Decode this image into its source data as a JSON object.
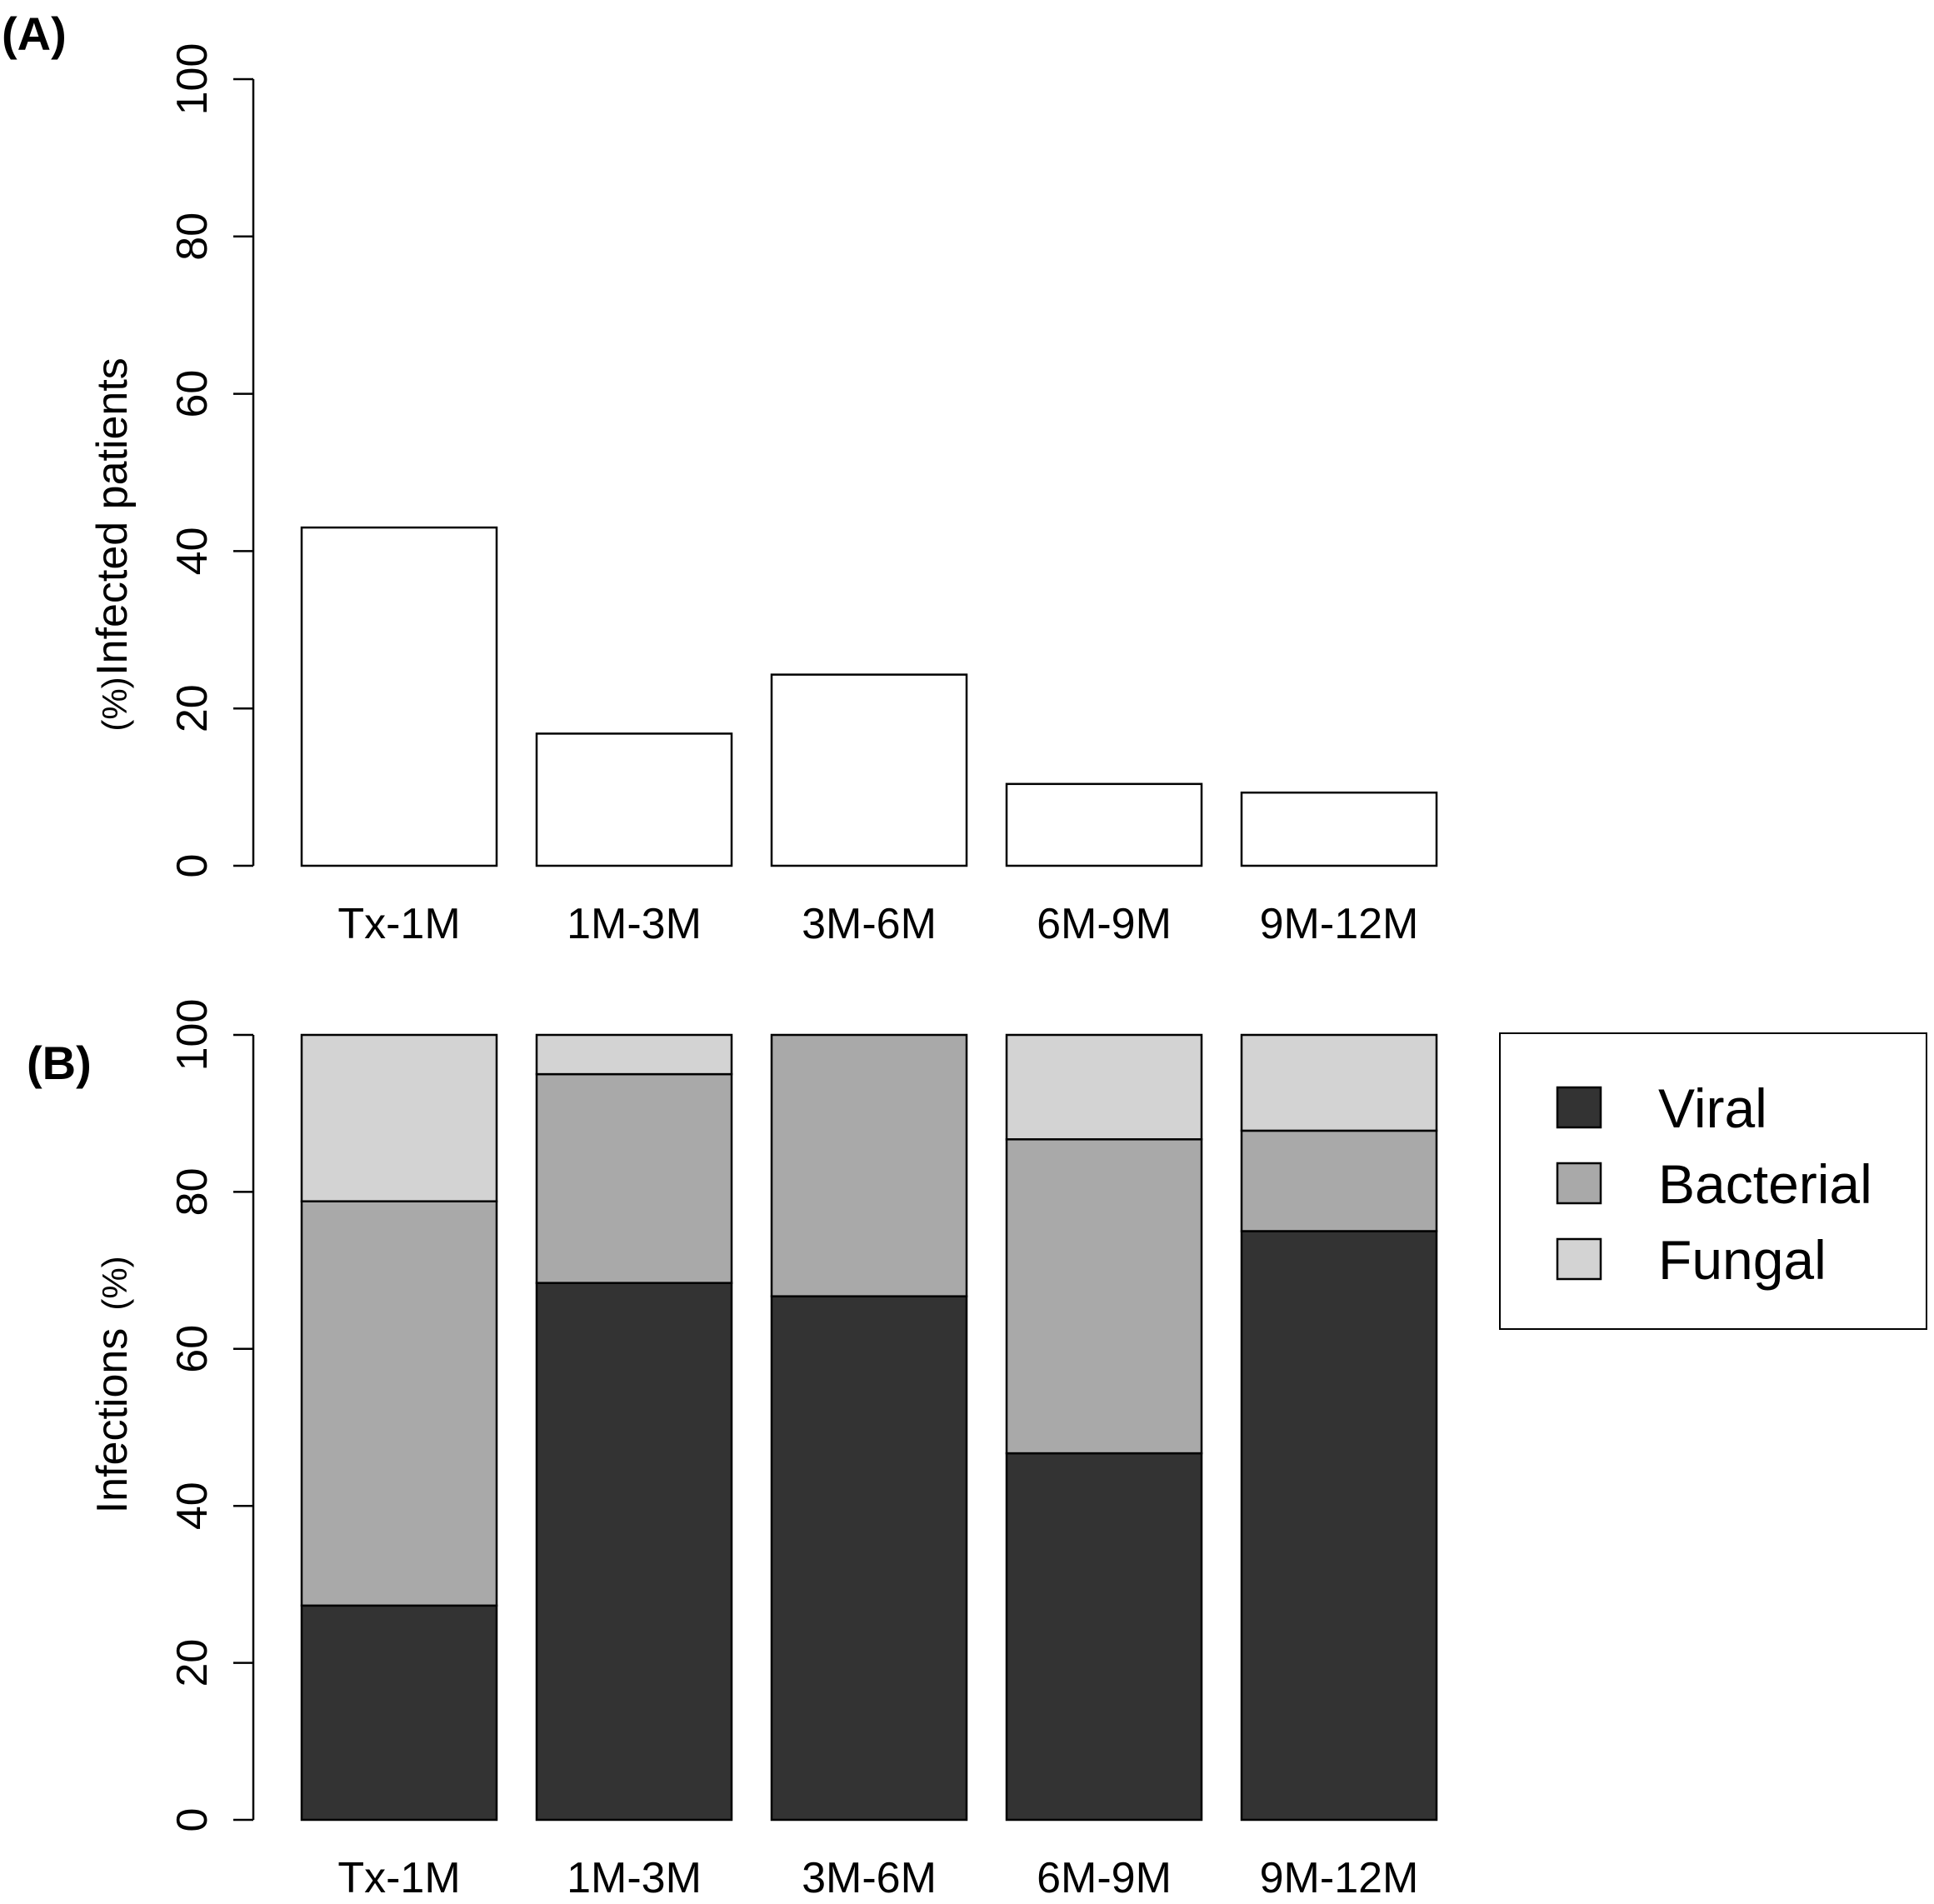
{
  "chart_data": [
    {
      "panel": "(A)",
      "type": "bar",
      "categories": [
        "Tx-1M",
        "1M-3M",
        "3M-6M",
        "6M-9M",
        "9M-12M"
      ],
      "values": [
        43,
        16.8,
        24.3,
        10.4,
        9.3
      ],
      "ylabel": "Infected patients",
      "yunit": "(%)",
      "ylim": [
        0,
        100
      ],
      "yticks": [
        0,
        20,
        40,
        60,
        80,
        100
      ],
      "bar_color": "#ffffff"
    },
    {
      "panel": "(B)",
      "type": "bar",
      "stacked": true,
      "categories": [
        "Tx-1M",
        "1M-3M",
        "3M-6M",
        "6M-9M",
        "9M-12M"
      ],
      "series": [
        {
          "name": "Viral",
          "color": "#333333",
          "values": [
            27.3,
            68.4,
            66.7,
            46.7,
            75.0
          ]
        },
        {
          "name": "Bacterial",
          "color": "#a9a9a9",
          "values": [
            51.5,
            26.6,
            33.3,
            40.0,
            12.8
          ]
        },
        {
          "name": "Fungal",
          "color": "#d3d3d3",
          "values": [
            21.2,
            5.0,
            0,
            13.3,
            12.2
          ]
        }
      ],
      "ylabel": "Infections",
      "yunit": "(%)",
      "ylim": [
        0,
        100
      ],
      "yticks": [
        0,
        20,
        40,
        60,
        80,
        100
      ],
      "legend": {
        "position": "right",
        "entries": [
          "Viral",
          "Bacterial",
          "Fungal"
        ]
      }
    }
  ]
}
